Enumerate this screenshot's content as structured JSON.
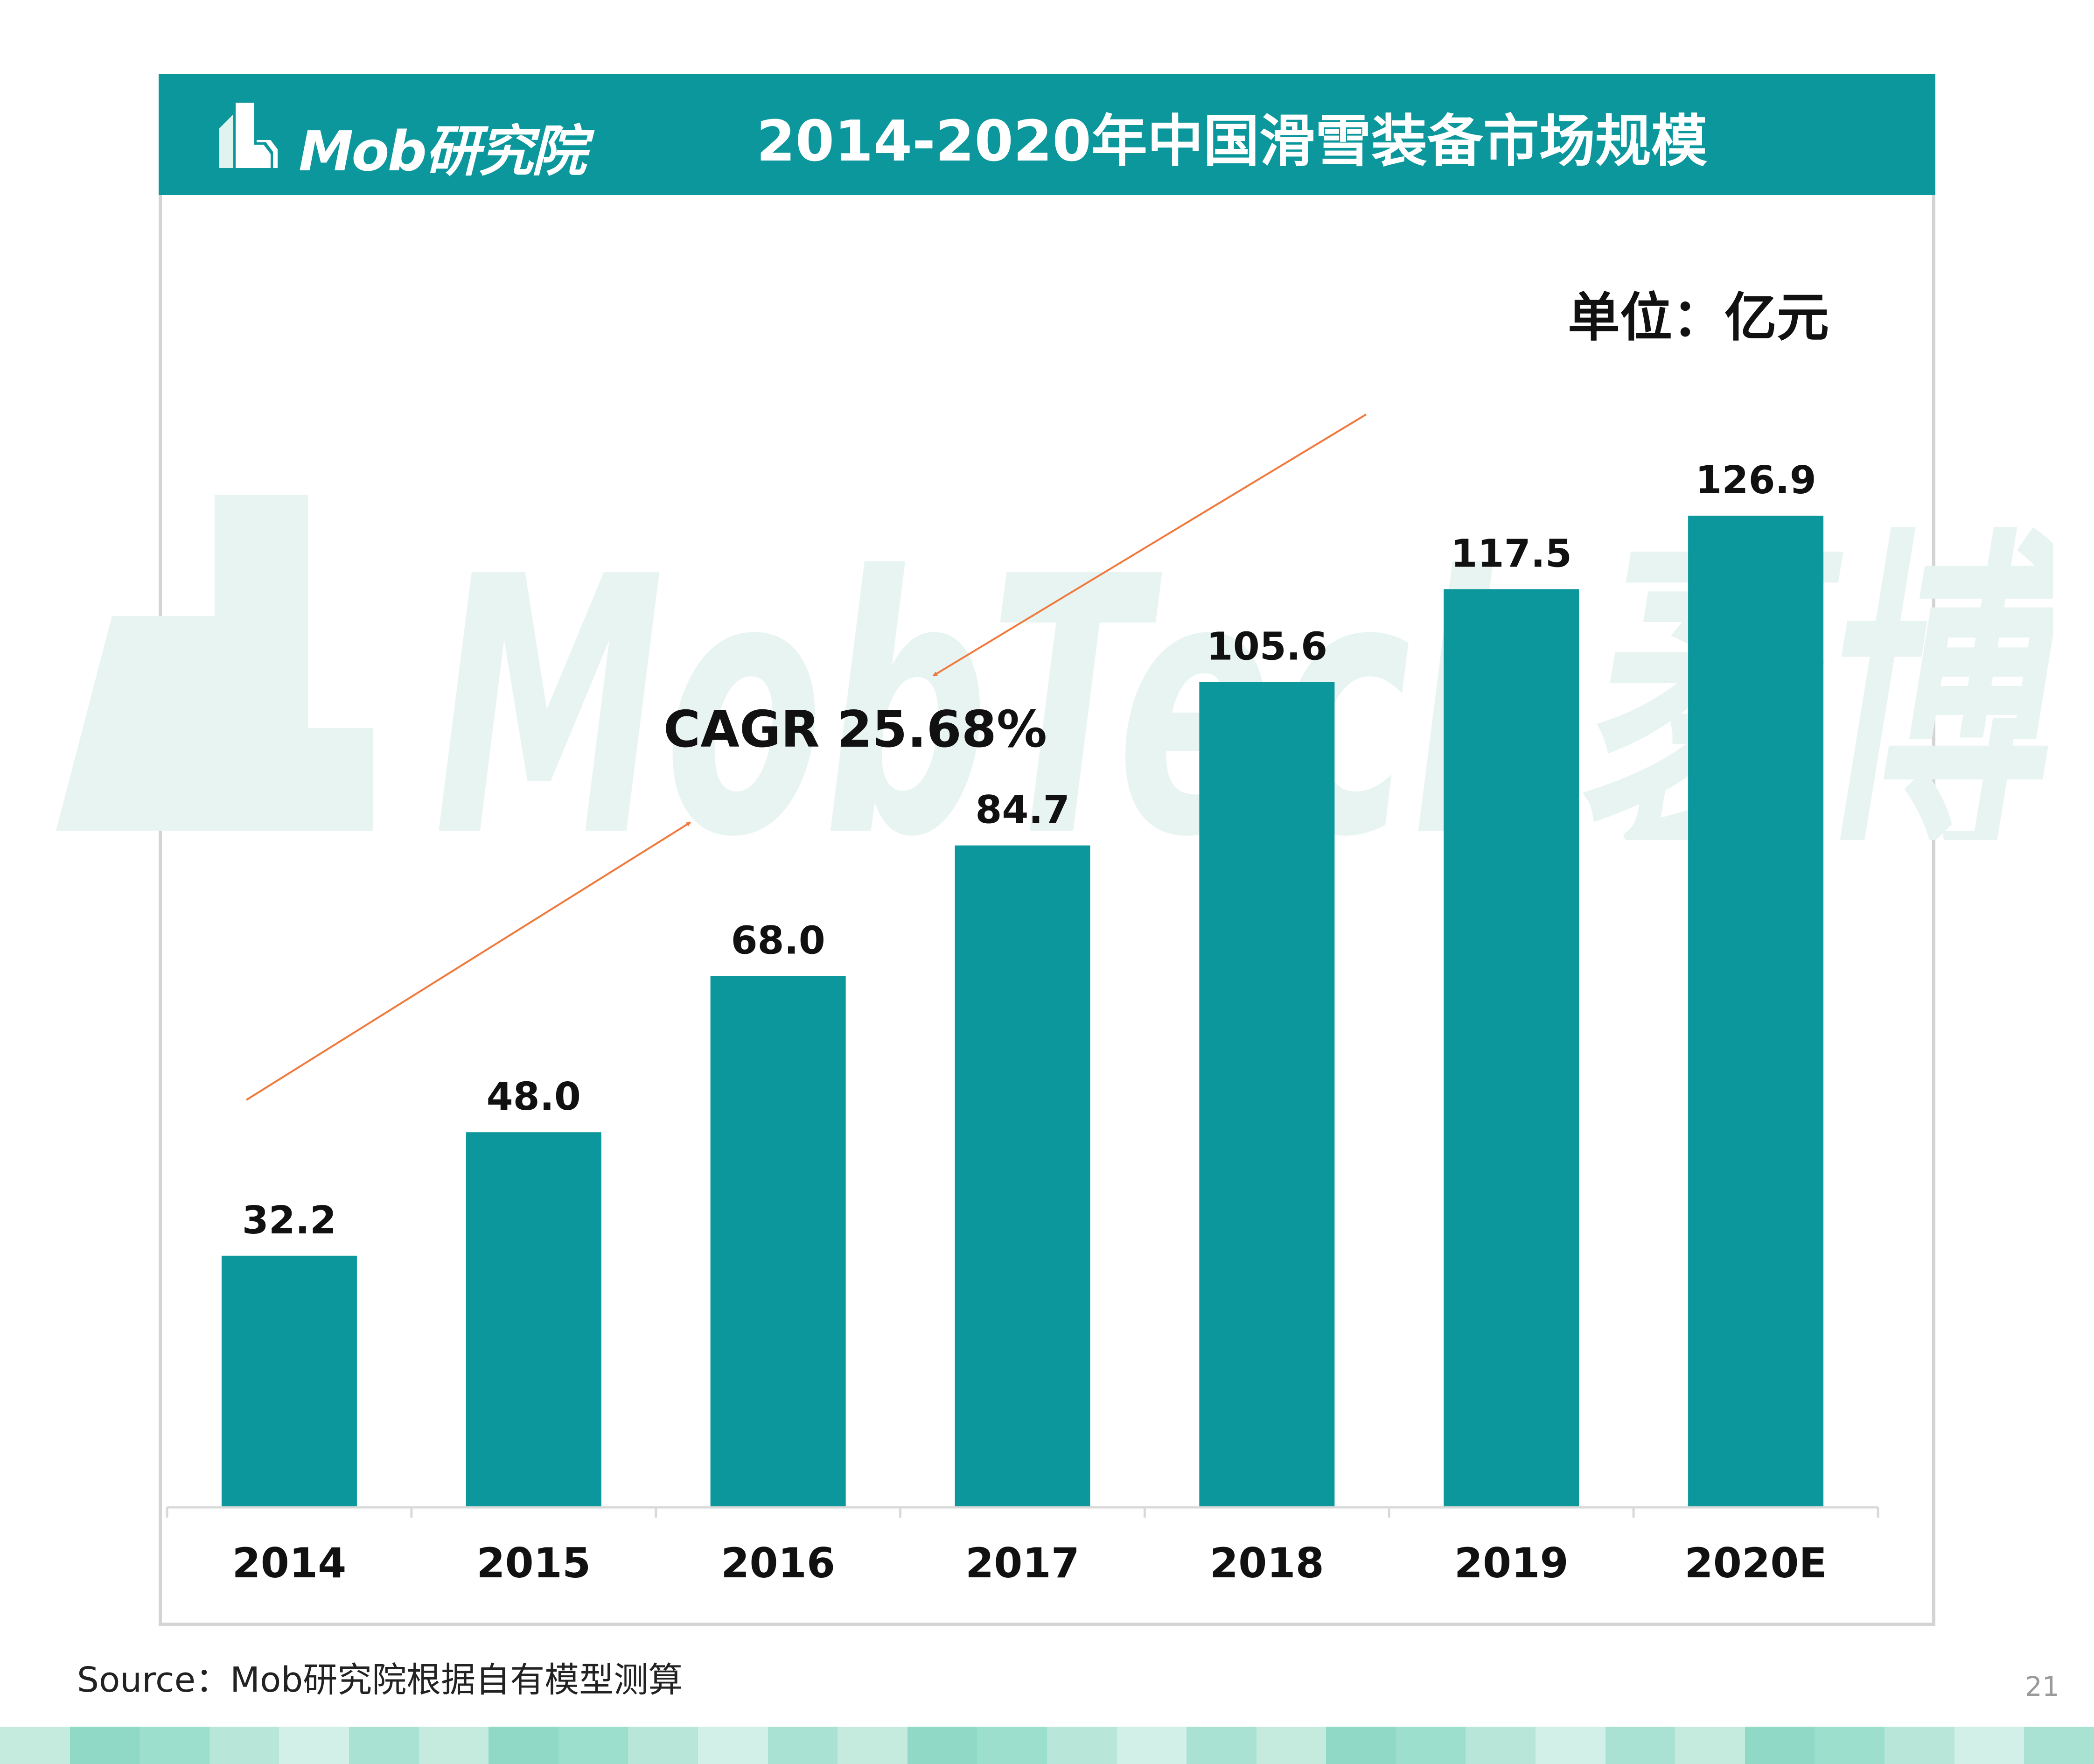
{
  "header": {
    "logo_text": "Mob研究院",
    "title": "2014-2020年中国滑雪装备市场规模"
  },
  "watermark": {
    "text": "MobTech袤博"
  },
  "unit": "单位：亿元",
  "annotation": {
    "cagr_text": "CAGR 25.68%"
  },
  "source": "Source：Mob研究院根据自有模型测算",
  "page_number": "21",
  "colors": {
    "header": "#0b979c",
    "bar": "#0b979c",
    "arrow": "#f07a3e",
    "watermark": "#e8f4f1",
    "footer": [
      "#c5ebdf",
      "#a9e2d2",
      "#8fd9c6",
      "#b8e7da",
      "#9cdfcd",
      "#d2f0e7"
    ]
  },
  "chart_data": {
    "type": "bar",
    "title": "2014-2020年中国滑雪装备市场规模",
    "categories": [
      "2014",
      "2015",
      "2016",
      "2017",
      "2018",
      "2019",
      "2020E"
    ],
    "values": [
      32.2,
      48.0,
      68.0,
      84.7,
      105.6,
      117.5,
      126.9
    ],
    "value_labels": [
      "32.2",
      "48.0",
      "68.0",
      "84.7",
      "105.6",
      "117.5",
      "126.9"
    ],
    "unit": "单位：亿元",
    "ylim": [
      0,
      126.9
    ],
    "grid": false,
    "legend": "none",
    "annotations": [
      "CAGR 25.68%"
    ]
  }
}
